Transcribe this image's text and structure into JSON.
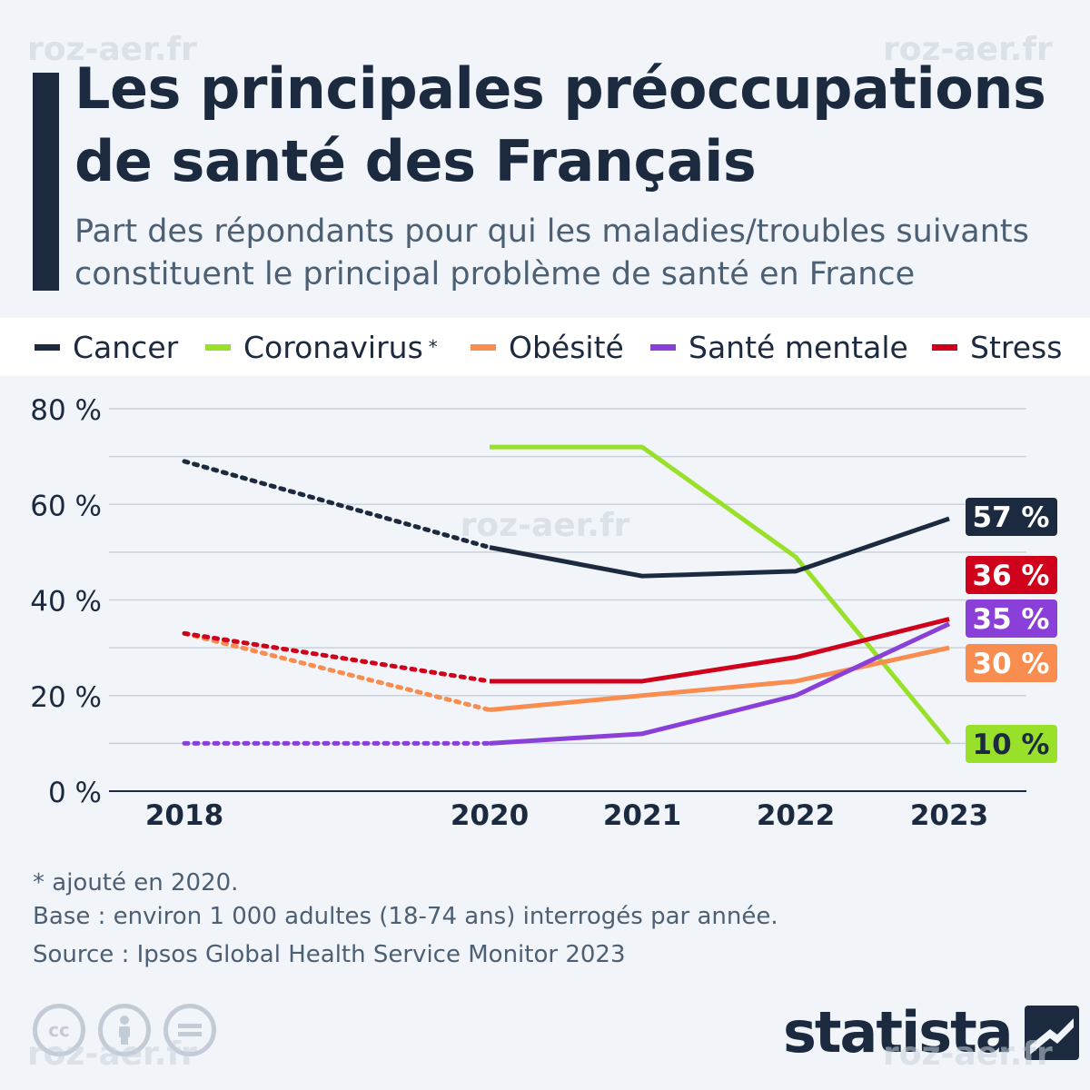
{
  "title": "Les principales préoccupations de santé des Français",
  "subtitle": "Part des répondants pour qui les maladies/troubles suivants constituent le principal problème de santé en France",
  "watermark": "roz-aer.fr",
  "footnotes": {
    "asterisk": "* ajouté en 2020.",
    "base": "Base : environ 1 000 adultes (18-74 ans) interrogés par année.",
    "source": "Source : Ipsos Global Health Service Monitor 2023"
  },
  "brand": {
    "name": "statista"
  },
  "colors": {
    "cancer": "#1c2a3f",
    "coronavirus": "#99e02b",
    "obesite": "#f98d4f",
    "sante_mentale": "#8a40d8",
    "stress": "#d0021b",
    "grid": "#c9d1da",
    "background": "#f1f5f9"
  },
  "chart_data": {
    "type": "line",
    "x": [
      2018,
      2020,
      2021,
      2022,
      2023
    ],
    "tick_labels_x": [
      "2018",
      "2020",
      "2021",
      "2022",
      "2023"
    ],
    "ylim": [
      0,
      80
    ],
    "yticks": [
      0,
      20,
      40,
      60,
      80
    ],
    "ytick_labels": [
      "0 %",
      "20 %",
      "40 %",
      "60 %",
      "80 %"
    ],
    "grid": true,
    "legend_position": "top",
    "note": "Segment 2018–2020 drawn dotted (no survey in 2019).",
    "series": [
      {
        "key": "cancer",
        "name": "Cancer",
        "values": [
          69,
          51,
          45,
          46,
          57
        ],
        "end_label": "57 %"
      },
      {
        "key": "coronavirus",
        "name": "Coronavirus",
        "legend_suffix": "*",
        "values": [
          null,
          72,
          72,
          49,
          10
        ],
        "end_label": "10 %"
      },
      {
        "key": "obesite",
        "name": "Obésité",
        "values": [
          33,
          17,
          20,
          23,
          30
        ],
        "end_label": "30 %"
      },
      {
        "key": "sante_mentale",
        "name": "Santé mentale",
        "values": [
          10,
          10,
          12,
          20,
          35
        ],
        "end_label": "35 %"
      },
      {
        "key": "stress",
        "name": "Stress",
        "values": [
          33,
          23,
          23,
          28,
          36
        ],
        "end_label": "36 %"
      }
    ]
  }
}
